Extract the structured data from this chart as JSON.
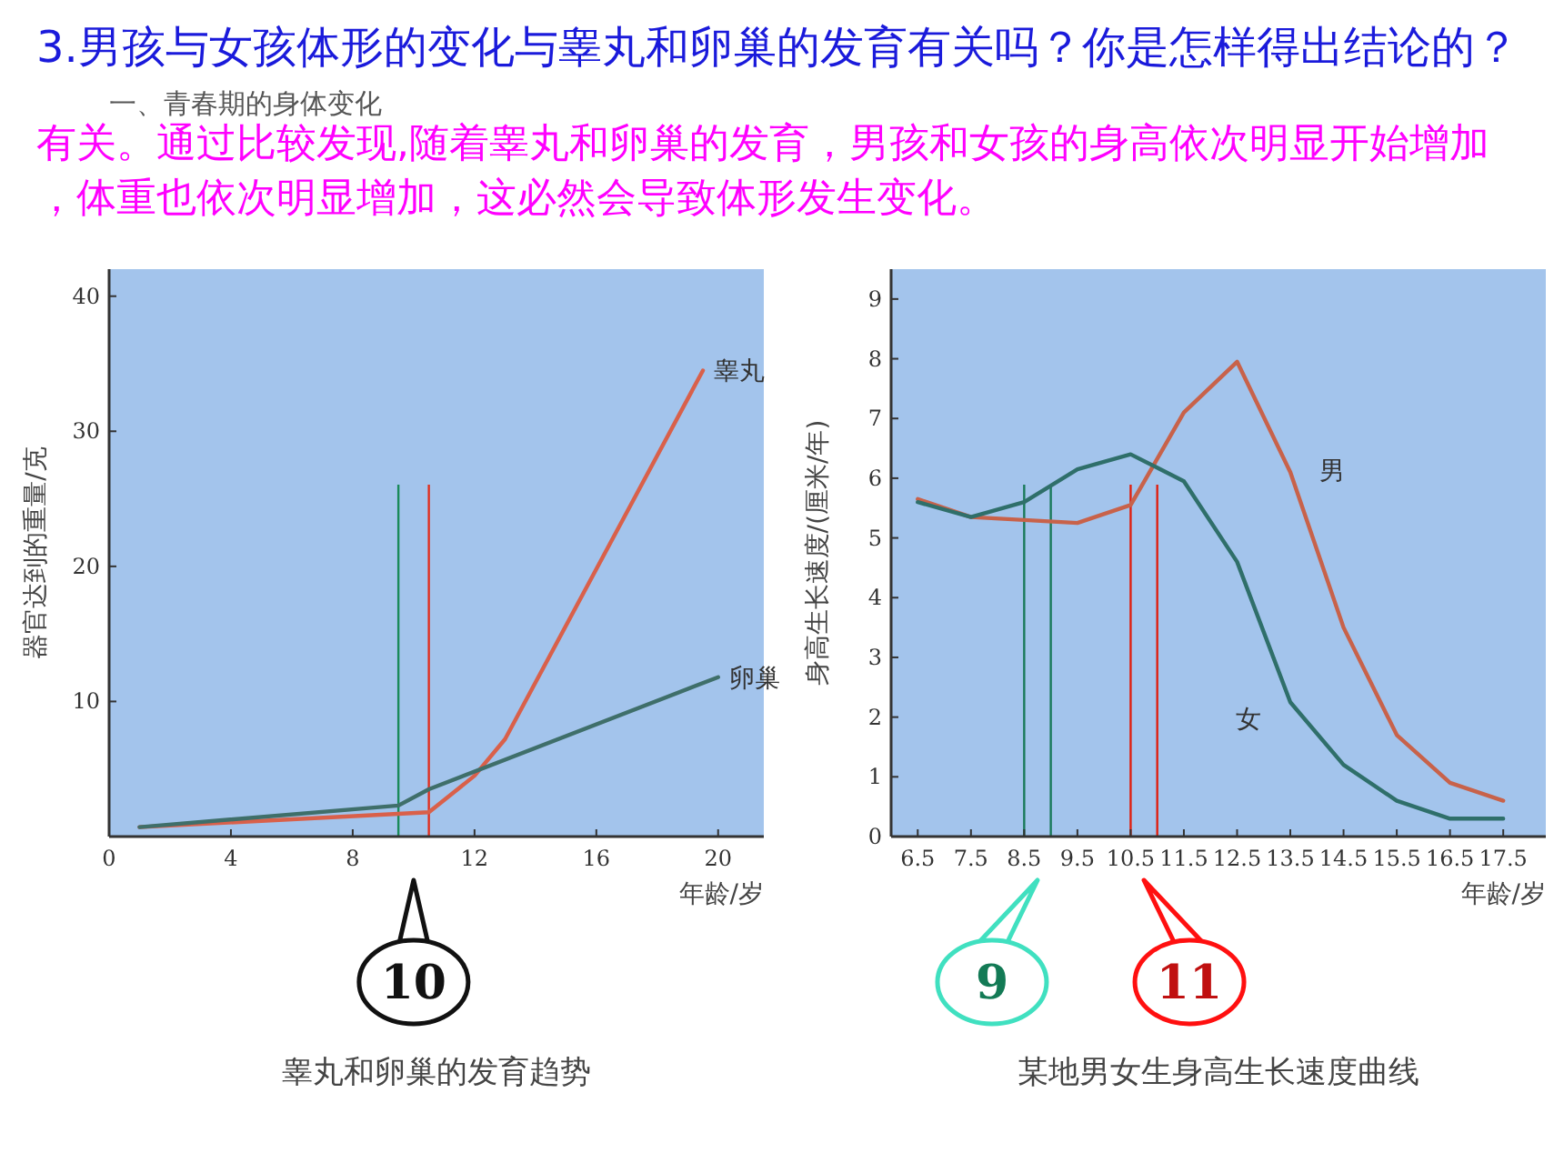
{
  "chart_data": [
    {
      "type": "other",
      "title": "3.男孩与女孩体形的变化与睾丸和卵巢的发育有关吗？你是怎样得出结论的？",
      "annotations": [
        "一、青春期的身体变化",
        "有关。通过比较发现,随着睾丸和卵巢的发育，男孩和女孩的身高依次明显开始增加，体重也依次明显增加，这必然会导致体形发生变化。"
      ]
    },
    {
      "type": "line",
      "title": "睾丸和卵巢的发育趋势",
      "xlabel": "年龄/岁",
      "ylabel": "器官达到的重量/克",
      "xlim": [
        0,
        21.5
      ],
      "ylim": [
        0,
        42
      ],
      "xticks": [
        0,
        4,
        8,
        12,
        16,
        20
      ],
      "yticks": [
        10,
        20,
        30,
        40
      ],
      "grid": false,
      "legend": false,
      "marker": "none",
      "series": [
        {
          "name": "睾丸",
          "color": "#d9604a",
          "x": [
            1,
            10.5,
            12,
            13,
            19.5
          ],
          "values": [
            0.7,
            1.8,
            4.5,
            7.2,
            34.5
          ]
        },
        {
          "name": "卵巢",
          "color": "#3f6f6a",
          "x": [
            1,
            9.5,
            10.5,
            20
          ],
          "values": [
            0.7,
            2.3,
            3.5,
            11.8
          ]
        }
      ],
      "ref_lines": [
        {
          "axis": "x",
          "value": 9.5,
          "color": "#1a8a5a"
        },
        {
          "axis": "x",
          "value": 10.5,
          "color": "#e03020"
        }
      ],
      "annotations": [
        "10"
      ]
    },
    {
      "type": "line",
      "title": "某地男女生身高生长速度曲线",
      "xlabel": "年龄/岁",
      "ylabel": "身高生长速度/(厘米/年)",
      "xlim": [
        6,
        18.3
      ],
      "ylim": [
        0,
        9.5
      ],
      "xticks": [
        6.5,
        7.5,
        8.5,
        9.5,
        10.5,
        11.5,
        12.5,
        13.5,
        14.5,
        15.5,
        16.5,
        17.5
      ],
      "yticks": [
        0,
        1,
        2,
        3,
        4,
        5,
        6,
        7,
        8,
        9
      ],
      "grid": false,
      "legend": false,
      "marker": "none",
      "x": [
        6.5,
        7.5,
        8.5,
        9.5,
        10.5,
        11.5,
        12.5,
        13.5,
        14.5,
        15.5,
        16.5,
        17.5
      ],
      "series": [
        {
          "name": "男",
          "color": "#c8624a",
          "values": [
            5.65,
            5.35,
            5.3,
            5.25,
            5.55,
            7.1,
            7.95,
            6.1,
            3.5,
            1.7,
            0.9,
            0.6
          ]
        },
        {
          "name": "女",
          "color": "#2f6f6a",
          "values": [
            5.6,
            5.35,
            5.6,
            6.15,
            6.4,
            5.95,
            4.6,
            2.25,
            1.2,
            0.6,
            0.3,
            0.3
          ]
        }
      ],
      "ref_lines": [
        {
          "axis": "x",
          "value": 8.5,
          "color": "#1a7a5a"
        },
        {
          "axis": "x",
          "value": 9,
          "color": "#1a7a5a"
        },
        {
          "axis": "x",
          "value": 10.5,
          "color": "#e02010"
        },
        {
          "axis": "x",
          "value": 11,
          "color": "#e02010"
        }
      ],
      "annotations": [
        "9",
        "11"
      ]
    }
  ]
}
